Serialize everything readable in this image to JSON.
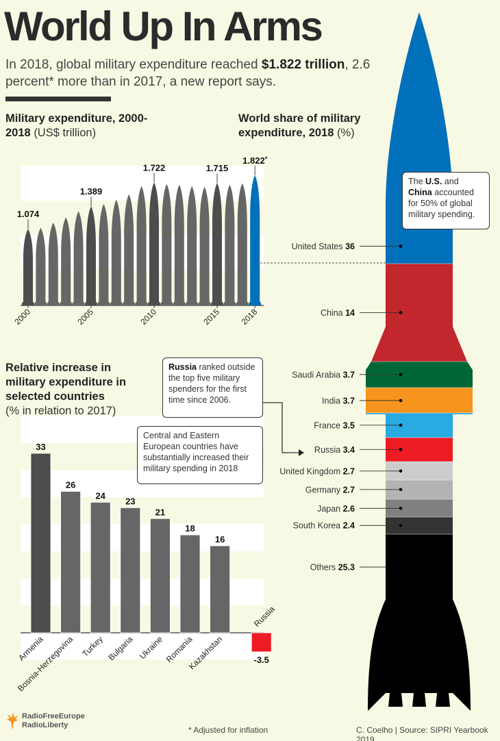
{
  "header": {
    "title": "World Up In Arms",
    "subtitle_pre": "In 2018, global military expenditure reached ",
    "subtitle_bold": "$1.822 trillion",
    "subtitle_post": ", 2.6 percent* more than in 2017, a new report says."
  },
  "headings": {
    "expenditure_bold": "Military expenditure, 2000-2018",
    "expenditure_unit": "(US$ trillion)",
    "share_bold": "World share of military expenditure, 2018",
    "share_unit": "(%)",
    "increase_bold": "Relative increase in military expenditure in selected countries",
    "increase_unit": "(% in relation to 2017)"
  },
  "callouts": {
    "us_china": {
      "t1": "The ",
      "b1": "U.S.",
      "t2": " and ",
      "b2": "China",
      "t3": " accounted for 50% of global military spending."
    },
    "russia": {
      "b1": "Russia",
      "t1": " ranked outside the top five military spenders for the first time since 2006."
    },
    "cee": "Central and Eastern European countries have substantially increased their military spending in 2018"
  },
  "colors": {
    "background": "#f8f9e4",
    "bar_dark": "#4d4d4d",
    "bar": "#666666",
    "highlight": "#0070bb",
    "negative": "#ed1c24"
  },
  "chart_data": [
    {
      "type": "bar",
      "title": "Military expenditure, 2000-2018 (US$ trillion)",
      "categories": [
        "2000",
        "2001",
        "2002",
        "2003",
        "2004",
        "2005",
        "2006",
        "2007",
        "2008",
        "2009",
        "2010",
        "2011",
        "2012",
        "2013",
        "2014",
        "2015",
        "2016",
        "2017",
        "2018"
      ],
      "values": [
        1.074,
        1.09,
        1.16,
        1.235,
        1.32,
        1.389,
        1.42,
        1.48,
        1.555,
        1.67,
        1.722,
        1.7,
        1.69,
        1.67,
        1.66,
        1.715,
        1.69,
        1.71,
        1.822
      ],
      "data_labels": {
        "2000": "1.074",
        "2005": "1.389",
        "2010": "1.722",
        "2015": "1.715",
        "2018": "1.822"
      },
      "data_label_suffix_2018": "*",
      "tick_labels": [
        "2000",
        "2005",
        "2010",
        "2015",
        "2018"
      ],
      "ylim": [
        0,
        1.9
      ],
      "mark": "rocket",
      "highlight_category": "2018"
    },
    {
      "type": "bar",
      "stacked": true,
      "title": "World share of military expenditure, 2018 (%)",
      "mark": "rocket",
      "categories": [
        "United States",
        "China",
        "Saudi Arabia",
        "India",
        "France",
        "Russia",
        "United Kingdom",
        "Germany",
        "Japan",
        "South Korea",
        "Others"
      ],
      "values": [
        36,
        14,
        3.7,
        3.7,
        3.5,
        3.4,
        2.7,
        2.7,
        2.6,
        2.4,
        25.3
      ],
      "value_labels": [
        "36",
        "14",
        "3.7",
        "3.7",
        "3.5",
        "3.4",
        "2.7",
        "2.7",
        "2.6",
        "2.4",
        "25.3"
      ],
      "colors": [
        "#0070bb",
        "#c1272d",
        "#006837",
        "#f7941d",
        "#29aae1",
        "#ed1c24",
        "#cccccc",
        "#b3b3b3",
        "#808080",
        "#333333",
        "#000000"
      ]
    },
    {
      "type": "bar",
      "title": "Relative increase in military expenditure in selected countries (% in relation to 2017)",
      "categories": [
        "Armenia",
        "Bosnia-Herzegovina",
        "Turkey",
        "Bulgaria",
        "Ukraine",
        "Romania",
        "Kazakhstan",
        "Russia"
      ],
      "values": [
        33,
        26,
        24,
        23,
        21,
        18,
        16,
        -3.5
      ],
      "value_labels": [
        "33",
        "26",
        "24",
        "23",
        "21",
        "18",
        "16",
        "-3.5"
      ],
      "ylim": [
        -5,
        35
      ]
    }
  ],
  "footer": {
    "logo_line1": "RadioFreeEurope",
    "logo_line2": "RadioLiberty",
    "note": "* Adjusted for inflation",
    "credit": "C. Coelho | Source: SIPRI Yearbook 2019"
  }
}
